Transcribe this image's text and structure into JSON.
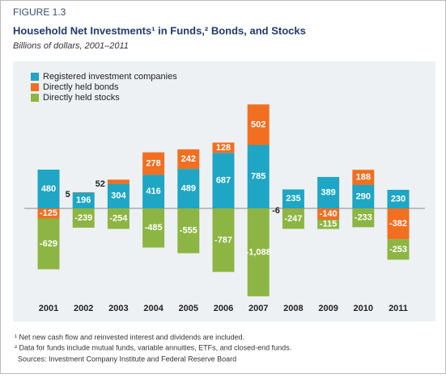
{
  "chart_data": {
    "type": "bar",
    "figure_label": "FIGURE 1.3",
    "title": "Household Net Investments¹ in Funds,² Bonds, and Stocks",
    "subtitle": "Billions of dollars, 2001–2011",
    "categories": [
      "2001",
      "2002",
      "2003",
      "2004",
      "2005",
      "2006",
      "2007",
      "2008",
      "2009",
      "2010",
      "2011"
    ],
    "stacked": true,
    "series": [
      {
        "name": "Registered investment companies",
        "color": "#1ea6c4",
        "values": [
          480,
          196,
          304,
          416,
          489,
          687,
          785,
          235,
          389,
          290,
          230
        ]
      },
      {
        "name": "Directly held bonds",
        "color": "#f26f21",
        "values": [
          -125,
          5,
          52,
          278,
          242,
          128,
          502,
          -6,
          -140,
          188,
          -382
        ]
      },
      {
        "name": "Directly held stocks",
        "color": "#8db543",
        "values": [
          -629,
          -239,
          -254,
          -485,
          -555,
          -787,
          -1088,
          -247,
          -115,
          -233,
          -253
        ],
        "value_labels": [
          "-629",
          "-239",
          "-254",
          "-485",
          "-555",
          "-787",
          "-1,088",
          "-247",
          "-115",
          "-233",
          "-253"
        ]
      }
    ],
    "footnotes": [
      "¹ Net new cash flow and reinvested interest and dividends are included.",
      "² Data for funds include mutual funds, variable annuities, ETFs, and closed-end funds.",
      "Sources: Investment Company Institute and Federal Reserve Board"
    ]
  }
}
